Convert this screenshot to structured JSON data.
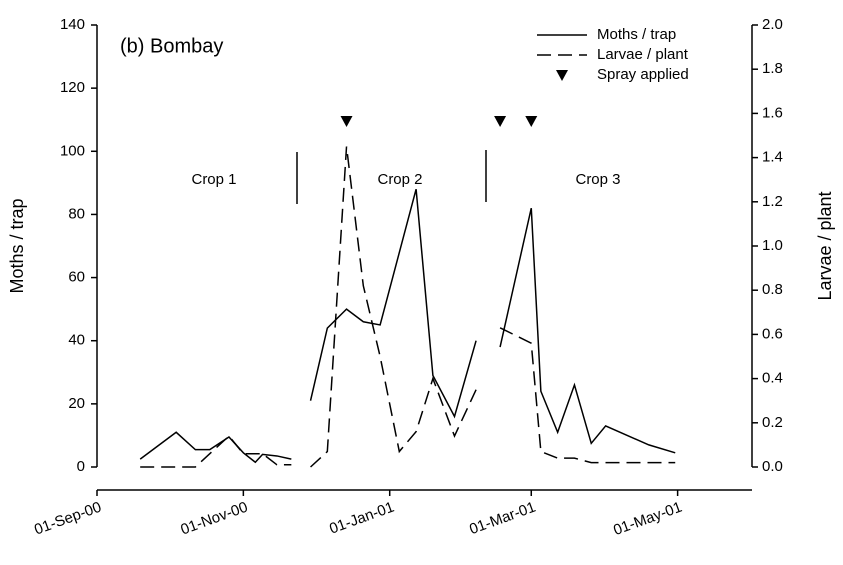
{
  "chart_data": {
    "type": "line",
    "annotations": {
      "panel": "(b) Bombay",
      "crops": [
        "Crop 1",
        "Crop 2",
        "Crop 3"
      ]
    },
    "ylabel": "Moths / trap",
    "y2label": "Larvae / plant",
    "xlim": [
      "2000-09-01",
      "2001-06-01"
    ],
    "xticks": [
      {
        "value": "2000-09-01",
        "label": "01-Sep-00"
      },
      {
        "value": "2000-11-01",
        "label": "01-Nov-00"
      },
      {
        "value": "2001-01-01",
        "label": "01-Jan-01"
      },
      {
        "value": "2001-03-01",
        "label": "01-Mar-01"
      },
      {
        "value": "2001-05-01",
        "label": "01-May-01"
      }
    ],
    "ylim": [
      0,
      140
    ],
    "yticks": [
      0,
      20,
      40,
      60,
      80,
      100,
      120,
      140
    ],
    "y2lim": [
      0,
      2
    ],
    "y2ticks": [
      {
        "value": 0,
        "label": "0.0"
      },
      {
        "value": 0.2,
        "label": "0.2"
      },
      {
        "value": 0.4,
        "label": "0.4"
      },
      {
        "value": 0.6,
        "label": "0.6"
      },
      {
        "value": 0.8,
        "label": "0.8"
      },
      {
        "value": 1,
        "label": "1.0"
      },
      {
        "value": 1.2,
        "label": "1.2"
      },
      {
        "value": 1.4,
        "label": "1.4"
      },
      {
        "value": 1.6,
        "label": "1.6"
      },
      {
        "value": 1.8,
        "label": "1.8"
      },
      {
        "value": 2,
        "label": "2.0"
      }
    ],
    "legend": "upper right",
    "series": [
      {
        "name": "Moths / trap",
        "color": "#000000",
        "linestyle": "solid",
        "pieces": [
          {
            "x": [
              "2000-09-19",
              "2000-10-04",
              "2000-10-12",
              "2000-10-18",
              "2000-10-26",
              "2000-11-01",
              "2000-11-06",
              "2000-11-09",
              "2000-11-15",
              "2000-11-21"
            ],
            "values": [
              2.5,
              11,
              5.5,
              5.5,
              9.5,
              4.5,
              1.5,
              4,
              3.5,
              2.5
            ]
          },
          {
            "x": [
              "2000-11-29",
              "2000-12-06",
              "2000-12-14",
              "2000-12-21",
              "2000-12-28",
              "2001-01-12",
              "2001-01-19",
              "2001-01-28",
              "2001-02-06"
            ],
            "values": [
              21,
              44,
              50,
              46,
              45,
              88,
              29,
              16,
              40
            ]
          },
          {
            "x": [
              "2001-02-16",
              "2001-03-01",
              "2001-03-05",
              "2001-03-12",
              "2001-03-19",
              "2001-03-26",
              "2001-04-01",
              "2001-04-19",
              "2001-04-30"
            ],
            "values": [
              38,
              82,
              24,
              11,
              26,
              7.5,
              13,
              7,
              4.5
            ]
          }
        ]
      },
      {
        "name": "Larvae / plant",
        "color": "#000000",
        "linestyle": "dashed",
        "axis": "y2",
        "pieces": [
          {
            "x": [
              "2000-09-19",
              "2000-10-12",
              "2000-10-26",
              "2000-11-01",
              "2000-11-09",
              "2000-11-15",
              "2000-11-21"
            ],
            "values": [
              0,
              0,
              0.14,
              0.06,
              0.06,
              0.01,
              0.01
            ]
          },
          {
            "x": [
              "2000-11-29",
              "2000-12-06",
              "2000-12-14",
              "2000-12-21",
              "2000-12-28",
              "2001-01-05",
              "2001-01-12",
              "2001-01-19",
              "2001-01-28",
              "2001-02-06"
            ],
            "values": [
              0,
              0.07,
              1.45,
              0.82,
              0.5,
              0.07,
              0.16,
              0.4,
              0.14,
              0.35
            ]
          },
          {
            "x": [
              "2001-02-16",
              "2001-03-01",
              "2001-03-05",
              "2001-03-12",
              "2001-03-19",
              "2001-03-26",
              "2001-04-01",
              "2001-04-30"
            ],
            "values": [
              0.63,
              0.56,
              0.07,
              0.04,
              0.04,
              0.02,
              0.02,
              0.02
            ]
          }
        ]
      }
    ],
    "spray": {
      "name": "Spray applied",
      "color": "#000000",
      "x": [
        "2000-12-14",
        "2001-02-16",
        "2001-03-01"
      ]
    }
  }
}
